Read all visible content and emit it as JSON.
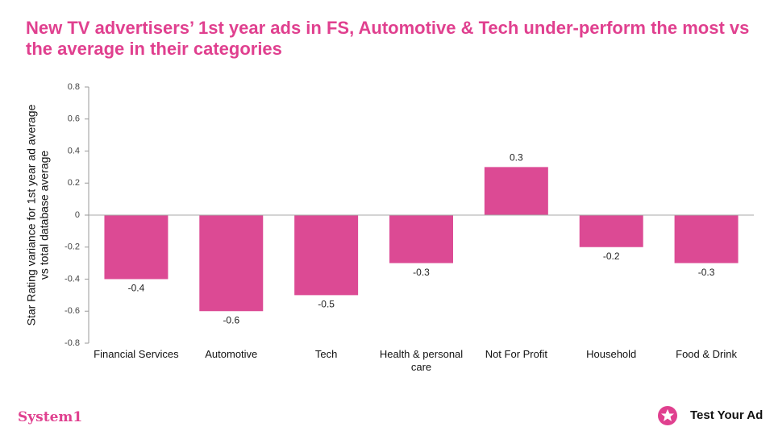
{
  "chart_data": {
    "type": "bar",
    "title": "New TV advertisers’ 1st year ads in FS, Automotive & Tech under-perform the most vs the average in their categories",
    "ylabel": [
      "Star Rating variance for 1st year ad average",
      "vs total database average"
    ],
    "categories": [
      "Financial Services",
      "Automotive",
      "Tech",
      "Health & personal care",
      "Not For Profit",
      "Household",
      "Food & Drink"
    ],
    "values": [
      -0.4,
      -0.6,
      -0.5,
      -0.3,
      0.3,
      -0.2,
      -0.3
    ],
    "color": "#dc4a94",
    "ylim": [
      -0.8,
      0.8
    ],
    "yticks": [
      -0.8,
      -0.6,
      -0.4,
      -0.2,
      0,
      0.2,
      0.4,
      0.6,
      0.8
    ],
    "grid": false
  },
  "footer": {
    "left_logo": "System1",
    "right_logo": "Test Your Ad"
  }
}
